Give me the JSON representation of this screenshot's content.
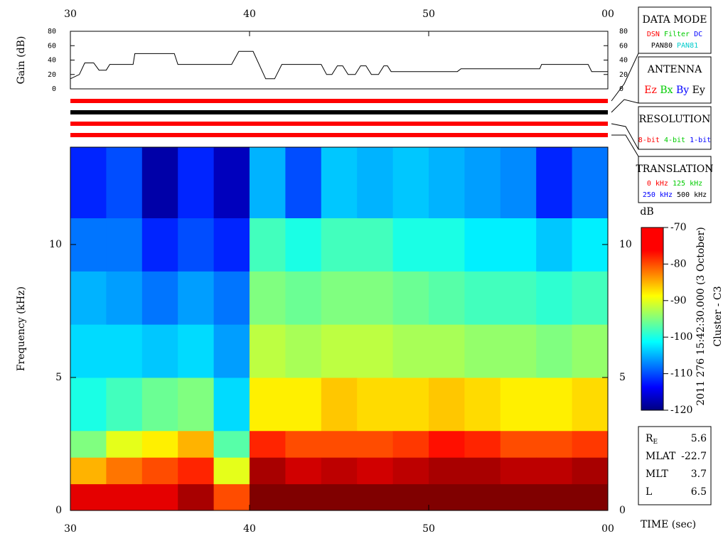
{
  "chart_data": [
    {
      "type": "line",
      "y_label": "Gain (dB)",
      "x": [
        30.0,
        30.5,
        30.8,
        31.3,
        31.6,
        32.0,
        32.2,
        33.5,
        33.6,
        35.8,
        36.0,
        39.0,
        39.4,
        40.2,
        40.9,
        41.4,
        41.8,
        44.0,
        44.3,
        44.6,
        44.9,
        45.2,
        45.5,
        45.9,
        46.2,
        46.5,
        46.8,
        47.2,
        47.5,
        47.7,
        47.9,
        51.6,
        51.8,
        56.2,
        56.3,
        58.9,
        59.1,
        60.0
      ],
      "values": [
        14,
        20,
        36,
        36,
        26,
        26,
        34,
        34,
        49,
        49,
        34,
        34,
        52,
        52,
        14,
        14,
        34,
        34,
        20,
        20,
        32,
        32,
        20,
        20,
        32,
        32,
        20,
        20,
        32,
        32,
        24,
        24,
        28,
        28,
        34,
        34,
        24,
        24
      ],
      "color": "#000000",
      "xlim": [
        30,
        60
      ],
      "xticks": [
        30,
        40,
        50,
        {
          "value": 60,
          "label": "00"
        }
      ],
      "ylim": [
        0,
        80
      ],
      "yticks": [
        0,
        20,
        40,
        60,
        80
      ]
    },
    {
      "type": "heatmap",
      "x_label": "TIME (sec)",
      "y_label": "Frequency (kHz)",
      "x_bins": [
        30,
        32,
        34,
        36,
        38,
        40,
        42,
        44,
        46,
        48,
        50,
        52,
        54,
        56,
        58,
        60
      ],
      "y_bins": [
        0,
        1,
        2,
        3,
        5,
        7,
        9,
        11,
        13.66
      ],
      "values": [
        [
          -75,
          -85,
          -95,
          -100,
          -103,
          -105,
          -108,
          -112
        ],
        [
          -75,
          -82,
          -90,
          -98,
          -103,
          -106,
          -108,
          -110
        ],
        [
          -75,
          -80,
          -88,
          -96,
          -104,
          -108,
          -112,
          -118
        ],
        [
          -72,
          -78,
          -85,
          -95,
          -103,
          -106,
          -110,
          -112
        ],
        [
          -80,
          -90,
          -97,
          -103,
          -106,
          -108,
          -112,
          -117
        ],
        [
          -70,
          -72,
          -78,
          -88,
          -92,
          -95,
          -98,
          -105
        ],
        [
          -70,
          -74,
          -80,
          -88,
          -93,
          -96,
          -100,
          -110
        ],
        [
          -70,
          -73,
          -80,
          -86,
          -92,
          -95,
          -98,
          -104
        ],
        [
          -70,
          -74,
          -80,
          -87,
          -92,
          -95,
          -98,
          -105
        ],
        [
          -70,
          -73,
          -79,
          -87,
          -93,
          -96,
          -100,
          -104
        ],
        [
          -70,
          -72,
          -77,
          -86,
          -93,
          -97,
          -100,
          -105
        ],
        [
          -70,
          -72,
          -78,
          -87,
          -94,
          -98,
          -102,
          -106
        ],
        [
          -70,
          -73,
          -80,
          -88,
          -94,
          -98,
          -102,
          -107
        ],
        [
          -70,
          -73,
          -80,
          -88,
          -95,
          -99,
          -104,
          -112
        ],
        [
          -70,
          -72,
          -79,
          -87,
          -94,
          -98,
          -102,
          -108
        ]
      ],
      "xlim": [
        30,
        60
      ],
      "xticks": [
        30,
        40,
        50,
        {
          "value": 60,
          "label": "00"
        }
      ],
      "ylim": [
        0,
        13.66
      ],
      "yticks": [
        0,
        5,
        10
      ],
      "colorbar": {
        "label": "dB",
        "zlim": [
          -120,
          -70
        ],
        "ticks": [
          -70,
          -80,
          -90,
          -100,
          -110,
          -120
        ]
      }
    }
  ],
  "indicator_bars": [
    "#ff0000",
    "#000000",
    "#ff0000",
    "#ff0000"
  ],
  "legend_boxes": [
    {
      "title": "DATA MODE",
      "rows": [
        [
          {
            "text": "DSN",
            "color": "#ff0000"
          },
          {
            "text": "Filter",
            "color": "#00cc00"
          },
          {
            "text": "DC",
            "color": "#0000ff"
          }
        ],
        [
          {
            "text": "PAN80",
            "color": "#000000"
          },
          {
            "text": "PAN81",
            "color": "#00cccc"
          }
        ]
      ]
    },
    {
      "title": "ANTENNA",
      "rows": [
        [
          {
            "text": "Ez",
            "color": "#ff0000"
          },
          {
            "text": "Bx",
            "color": "#00cc00"
          },
          {
            "text": "By",
            "color": "#0000ff"
          },
          {
            "text": "Ey",
            "color": "#000000"
          }
        ]
      ]
    },
    {
      "title": "RESOLUTION",
      "rows": [
        [
          {
            "text": "8-bit",
            "color": "#ff0000"
          },
          {
            "text": "4-bit",
            "color": "#00cc00"
          },
          {
            "text": "1-bit",
            "color": "#0000ff"
          }
        ]
      ]
    },
    {
      "title": "TRANSLATION",
      "rows": [
        [
          {
            "text": "0 kHz",
            "color": "#ff0000"
          },
          {
            "text": "125 kHz",
            "color": "#00cc00"
          }
        ],
        [
          {
            "text": "250 kHz",
            "color": "#0000ff"
          },
          {
            "text": "500 kHz",
            "color": "#000000"
          }
        ]
      ]
    }
  ],
  "header": {
    "line1": "2011 276 15:42:30.000 (3 October)",
    "line2": "Cluster - C3"
  },
  "orbit": [
    {
      "label": "R",
      "subscript": "E",
      "value": 5.6
    },
    {
      "label": "MLAT",
      "value": -22.7
    },
    {
      "label": "MLT",
      "value": 3.7
    },
    {
      "label": "L",
      "value": 6.5
    }
  ]
}
